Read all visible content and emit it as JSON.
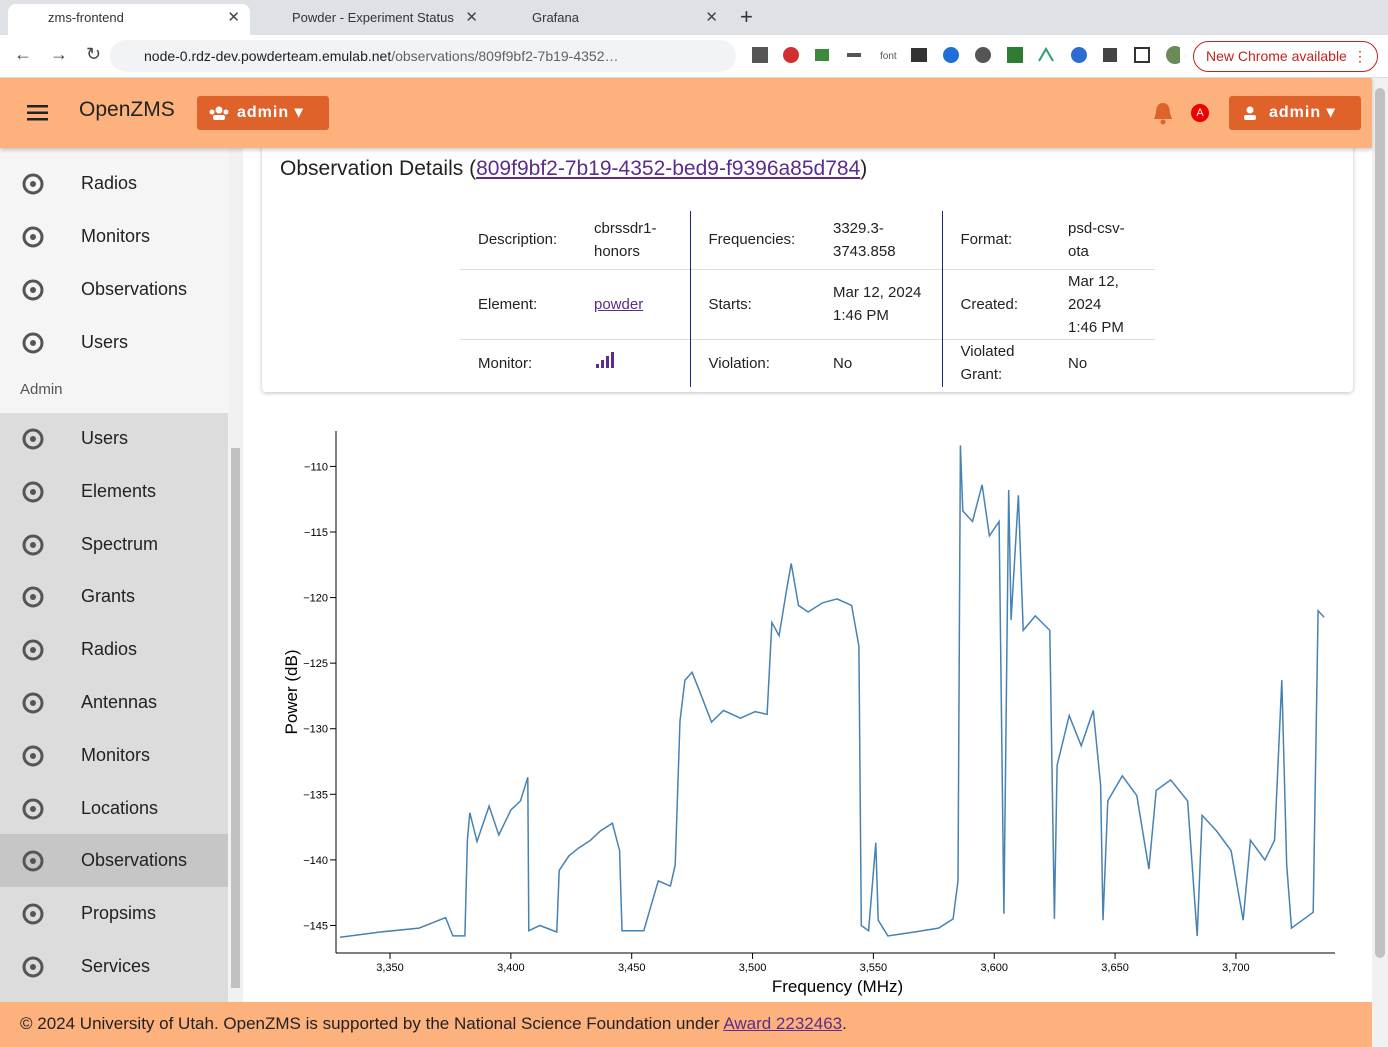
{
  "browser": {
    "tabs": [
      "zms-frontend",
      "Powder - Experiment Status",
      "Grafana"
    ],
    "url_host": "node-0.rdz-dev.powderteam.emulab.net",
    "url_path": "/observations/809f9bf2-7b19-4352…",
    "extension_label": "font",
    "update_button": "New Chrome available"
  },
  "app": {
    "title": "OpenZMS",
    "org_button": "admin",
    "user_button": "admin",
    "badge": "A"
  },
  "sidebar": {
    "items": [
      "Radios",
      "Monitors",
      "Observations",
      "Users"
    ],
    "section": "Admin",
    "admin_items": [
      "Users",
      "Elements",
      "Spectrum",
      "Grants",
      "Radios",
      "Antennas",
      "Monitors",
      "Locations",
      "Observations",
      "Propsims",
      "Services"
    ]
  },
  "details": {
    "heading": "Observation Details (",
    "id": "809f9bf2-7b19-4352-bed9-f9396a85d784",
    "heading_end": ")",
    "rows": [
      [
        "Description:",
        "cbrssdr1-honors",
        "Frequencies:",
        "3329.3-3743.858",
        "Format:",
        "psd-csv-ota"
      ],
      [
        "Element:",
        "powder",
        "Starts:",
        "Mar 12, 2024 1:46 PM",
        "Created:",
        "Mar 12, 2024 1:46 PM"
      ],
      [
        "Monitor:",
        "",
        "Violation:",
        "No",
        "Violated Grant:",
        "No"
      ]
    ]
  },
  "chart_data": {
    "type": "line",
    "x_label": "Frequency (MHz)",
    "y_label": "Power (dB)",
    "color": "#4682b4",
    "xlim": [
      3329.3,
      3741
    ],
    "ylim": [
      -147.1,
      -107.3
    ],
    "xticks": [
      {
        "value": 3350,
        "label": "3,350"
      },
      {
        "value": 3400,
        "label": "3,400"
      },
      {
        "value": 3450,
        "label": "3,450"
      },
      {
        "value": 3500,
        "label": "3,500"
      },
      {
        "value": 3550,
        "label": "3,550"
      },
      {
        "value": 3600,
        "label": "3,600"
      },
      {
        "value": 3650,
        "label": "3,650"
      },
      {
        "value": 3700,
        "label": "3,700"
      }
    ],
    "yticks": [
      {
        "value": -145,
        "label": "−145"
      },
      {
        "value": -140,
        "label": "−140"
      },
      {
        "value": -135,
        "label": "−135"
      },
      {
        "value": -130,
        "label": "−130"
      },
      {
        "value": -125,
        "label": "−125"
      },
      {
        "value": -120,
        "label": "−120"
      },
      {
        "value": -115,
        "label": "−115"
      },
      {
        "value": -110,
        "label": "−110"
      }
    ],
    "x": [
      3329.3,
      3346,
      3362,
      3373,
      3376,
      3381,
      3382,
      3383,
      3386,
      3391,
      3395,
      3400,
      3404,
      3407,
      3407.4,
      3412,
      3419,
      3420,
      3424,
      3428,
      3433,
      3437,
      3442,
      3445,
      3446,
      3455,
      3458,
      3461,
      3466,
      3468,
      3470,
      3472,
      3475,
      3478,
      3483,
      3488,
      3495,
      3501,
      3506,
      3508,
      3511,
      3514,
      3516,
      3519,
      3523,
      3529,
      3535,
      3541,
      3544,
      3545,
      3548,
      3551,
      3552,
      3556,
      3567,
      3577,
      3583,
      3585,
      3586,
      3587,
      3591,
      3595,
      3598,
      3602,
      3604,
      3606,
      3607,
      3610,
      3612,
      3617,
      3623,
      3624.9,
      3626,
      3631,
      3636,
      3641,
      3644,
      3645,
      3647,
      3653,
      3659,
      3664,
      3667,
      3673,
      3680,
      3684,
      3686,
      3692,
      3698,
      3703,
      3706,
      3712,
      3716,
      3719,
      3721,
      3723,
      3732,
      3734,
      3736.5
    ],
    "series": [
      {
        "name": "Power",
        "values": [
          -145.9,
          -145.5,
          -145.2,
          -144.4,
          -145.8,
          -145.8,
          -138.5,
          -136.4,
          -138.6,
          -135.9,
          -138.1,
          -136.2,
          -135.5,
          -133.7,
          -145.4,
          -145,
          -145.5,
          -140.8,
          -139.7,
          -139.1,
          -138.5,
          -137.8,
          -137.2,
          -139.3,
          -145.4,
          -145.4,
          -143.5,
          -141.6,
          -142,
          -140.4,
          -129.4,
          -126.3,
          -125.7,
          -127.1,
          -129.5,
          -128.6,
          -129.2,
          -128.7,
          -128.9,
          -121.9,
          -122.9,
          -119.5,
          -117.4,
          -120.6,
          -121.1,
          -120.4,
          -120.1,
          -120.6,
          -123.7,
          -145,
          -145.4,
          -138.7,
          -144.6,
          -145.8,
          -145.5,
          -145.2,
          -144.5,
          -141.6,
          -108.4,
          -113.4,
          -114.2,
          -111.4,
          -115.3,
          -114.2,
          -144.1,
          -111.8,
          -121.7,
          -112.2,
          -122.5,
          -121.4,
          -122.5,
          -144.5,
          -132.8,
          -129,
          -131.3,
          -128.6,
          -134.3,
          -144.6,
          -135.5,
          -133.6,
          -135.1,
          -140.7,
          -134.7,
          -133.9,
          -135.5,
          -145.8,
          -136.6,
          -137.8,
          -139.3,
          -144.6,
          -138.5,
          -140,
          -138.5,
          -126.3,
          -140.4,
          -145.2,
          -144,
          -121,
          -121.5
        ]
      }
    ]
  },
  "footer": {
    "text": "© 2024 University of Utah. OpenZMS is supported by the National Science Foundation under ",
    "link": "Award 2232463",
    "end": "."
  }
}
